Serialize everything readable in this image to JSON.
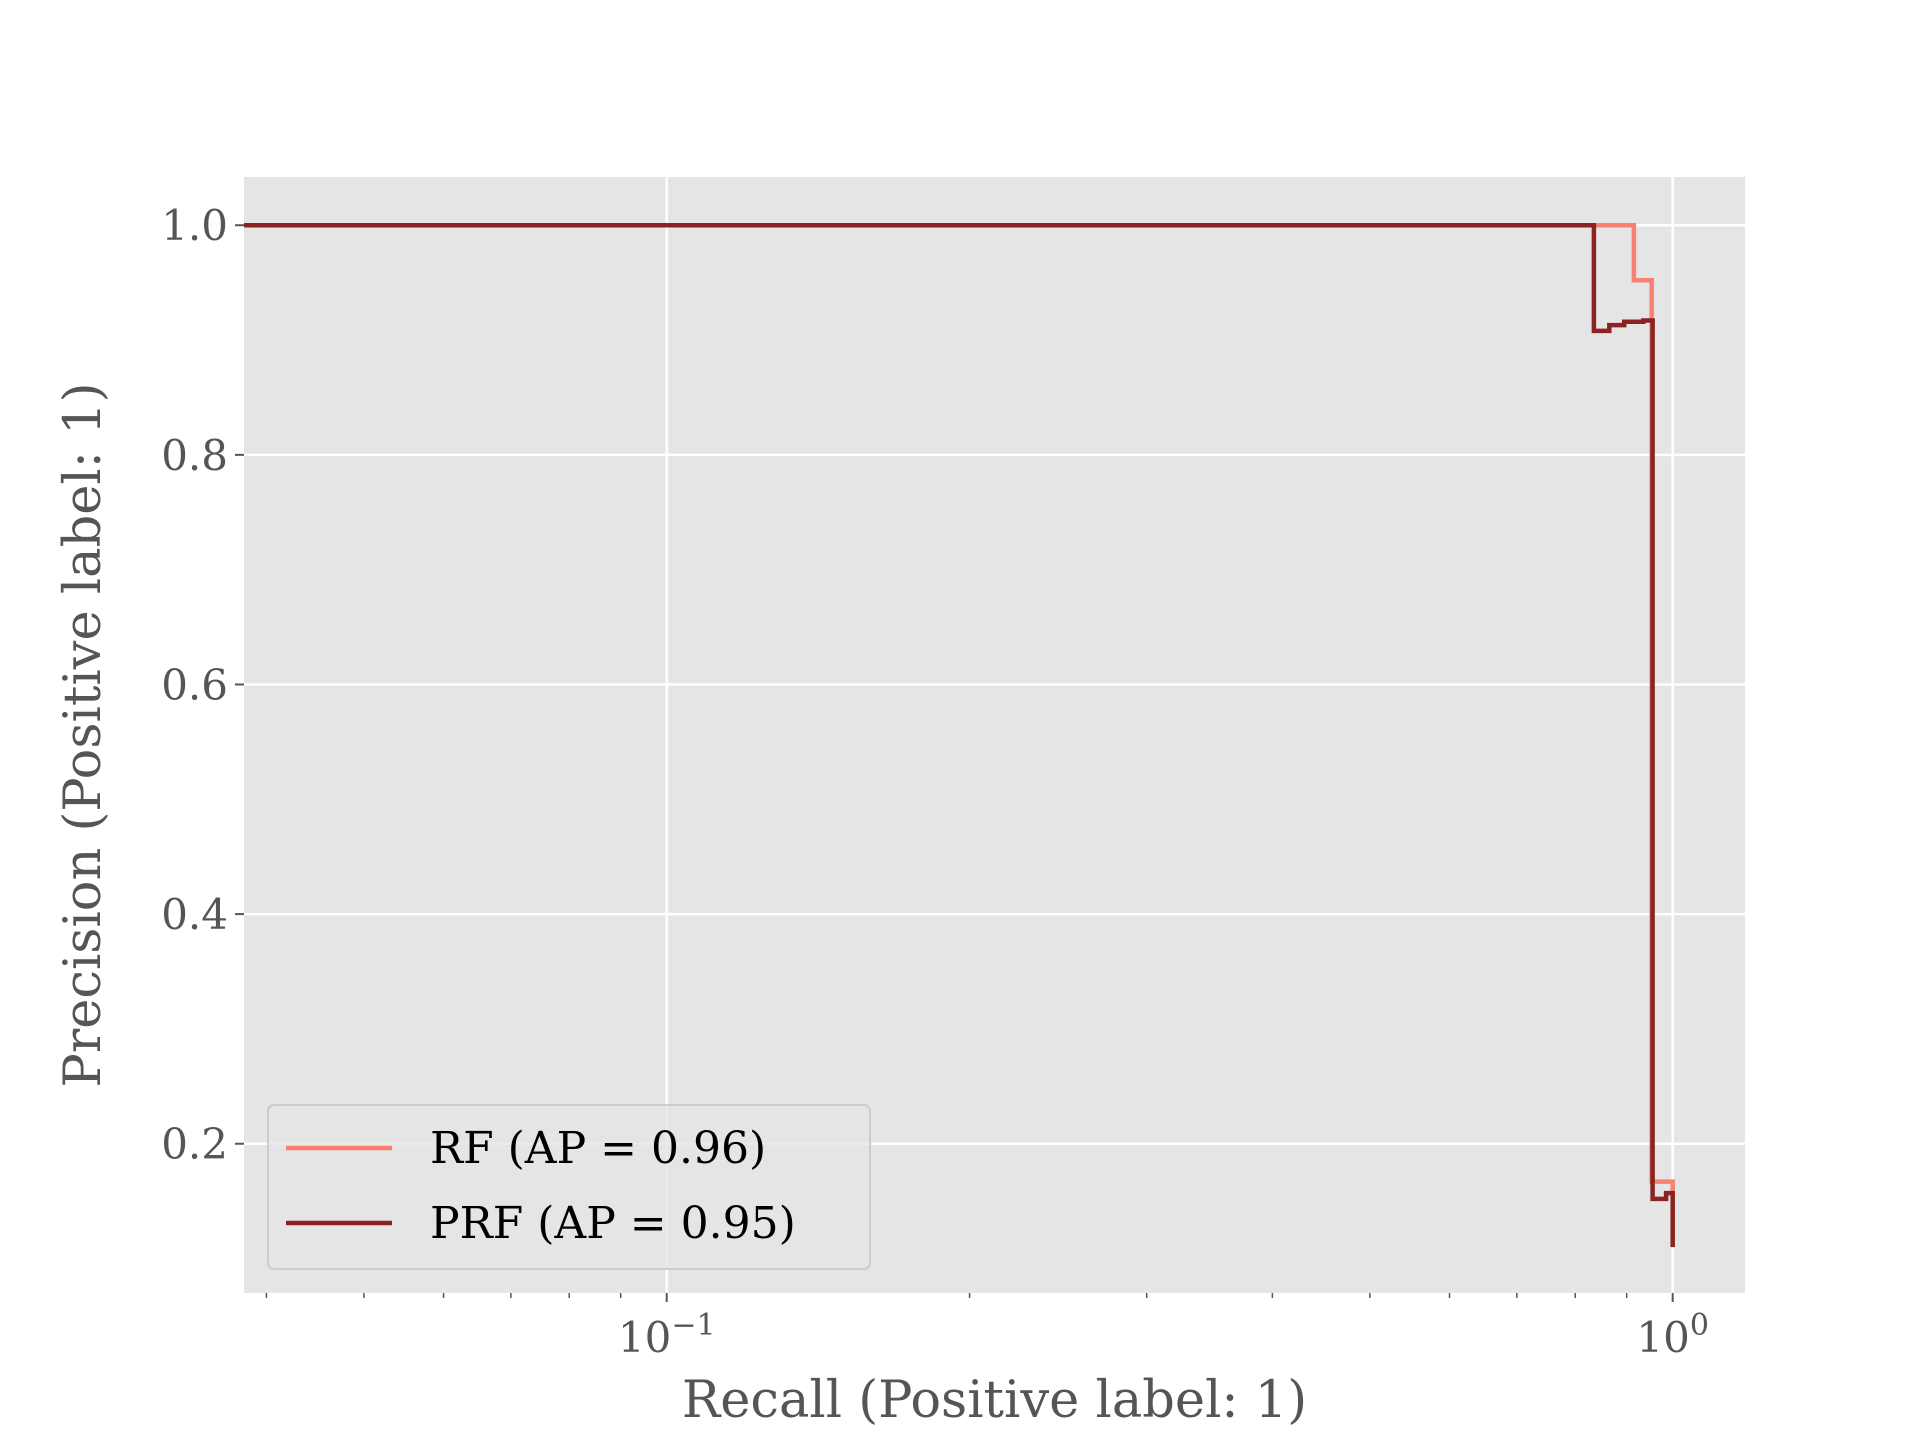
{
  "chart_data": {
    "type": "line",
    "title": "",
    "xlabel": "Recall (Positive label: 1)",
    "ylabel": "Precision (Positive label: 1)",
    "xscale": "log",
    "xlim": [
      0.038,
      1.18
    ],
    "ylim": [
      0.07,
      1.042
    ],
    "grid": true,
    "legend_position": "lower-left",
    "x_ticks": [
      {
        "value": 0.1,
        "base": "10",
        "exp": "−1"
      },
      {
        "value": 1.0,
        "base": "10",
        "exp": "0"
      }
    ],
    "y_ticks": [
      {
        "value": 0.2,
        "label": "0.2"
      },
      {
        "value": 0.4,
        "label": "0.4"
      },
      {
        "value": 0.6,
        "label": "0.6"
      },
      {
        "value": 0.8,
        "label": "0.8"
      },
      {
        "value": 1.0,
        "label": "1.0"
      }
    ],
    "series": [
      {
        "name": "RF (AP = 0.96)",
        "color": "#FA8072",
        "recall": [
          0.038,
          0.875,
          0.875,
          0.915,
          0.915,
          0.953,
          0.953,
          0.975,
          0.975,
          1.0,
          1.0
        ],
        "precision": [
          1.0,
          1.0,
          1.0,
          1.0,
          0.952,
          0.952,
          0.167,
          0.167,
          0.167,
          0.167,
          0.155
        ]
      },
      {
        "name": "PRF (AP = 0.95)",
        "color": "#8B2323",
        "recall": [
          0.038,
          0.835,
          0.835,
          0.865,
          0.865,
          0.895,
          0.895,
          0.935,
          0.935,
          0.955,
          0.955,
          0.985,
          0.985,
          1.0,
          1.0
        ],
        "precision": [
          1.0,
          1.0,
          0.908,
          0.908,
          0.913,
          0.913,
          0.916,
          0.916,
          0.917,
          0.917,
          0.152,
          0.152,
          0.157,
          0.157,
          0.11
        ]
      }
    ]
  }
}
